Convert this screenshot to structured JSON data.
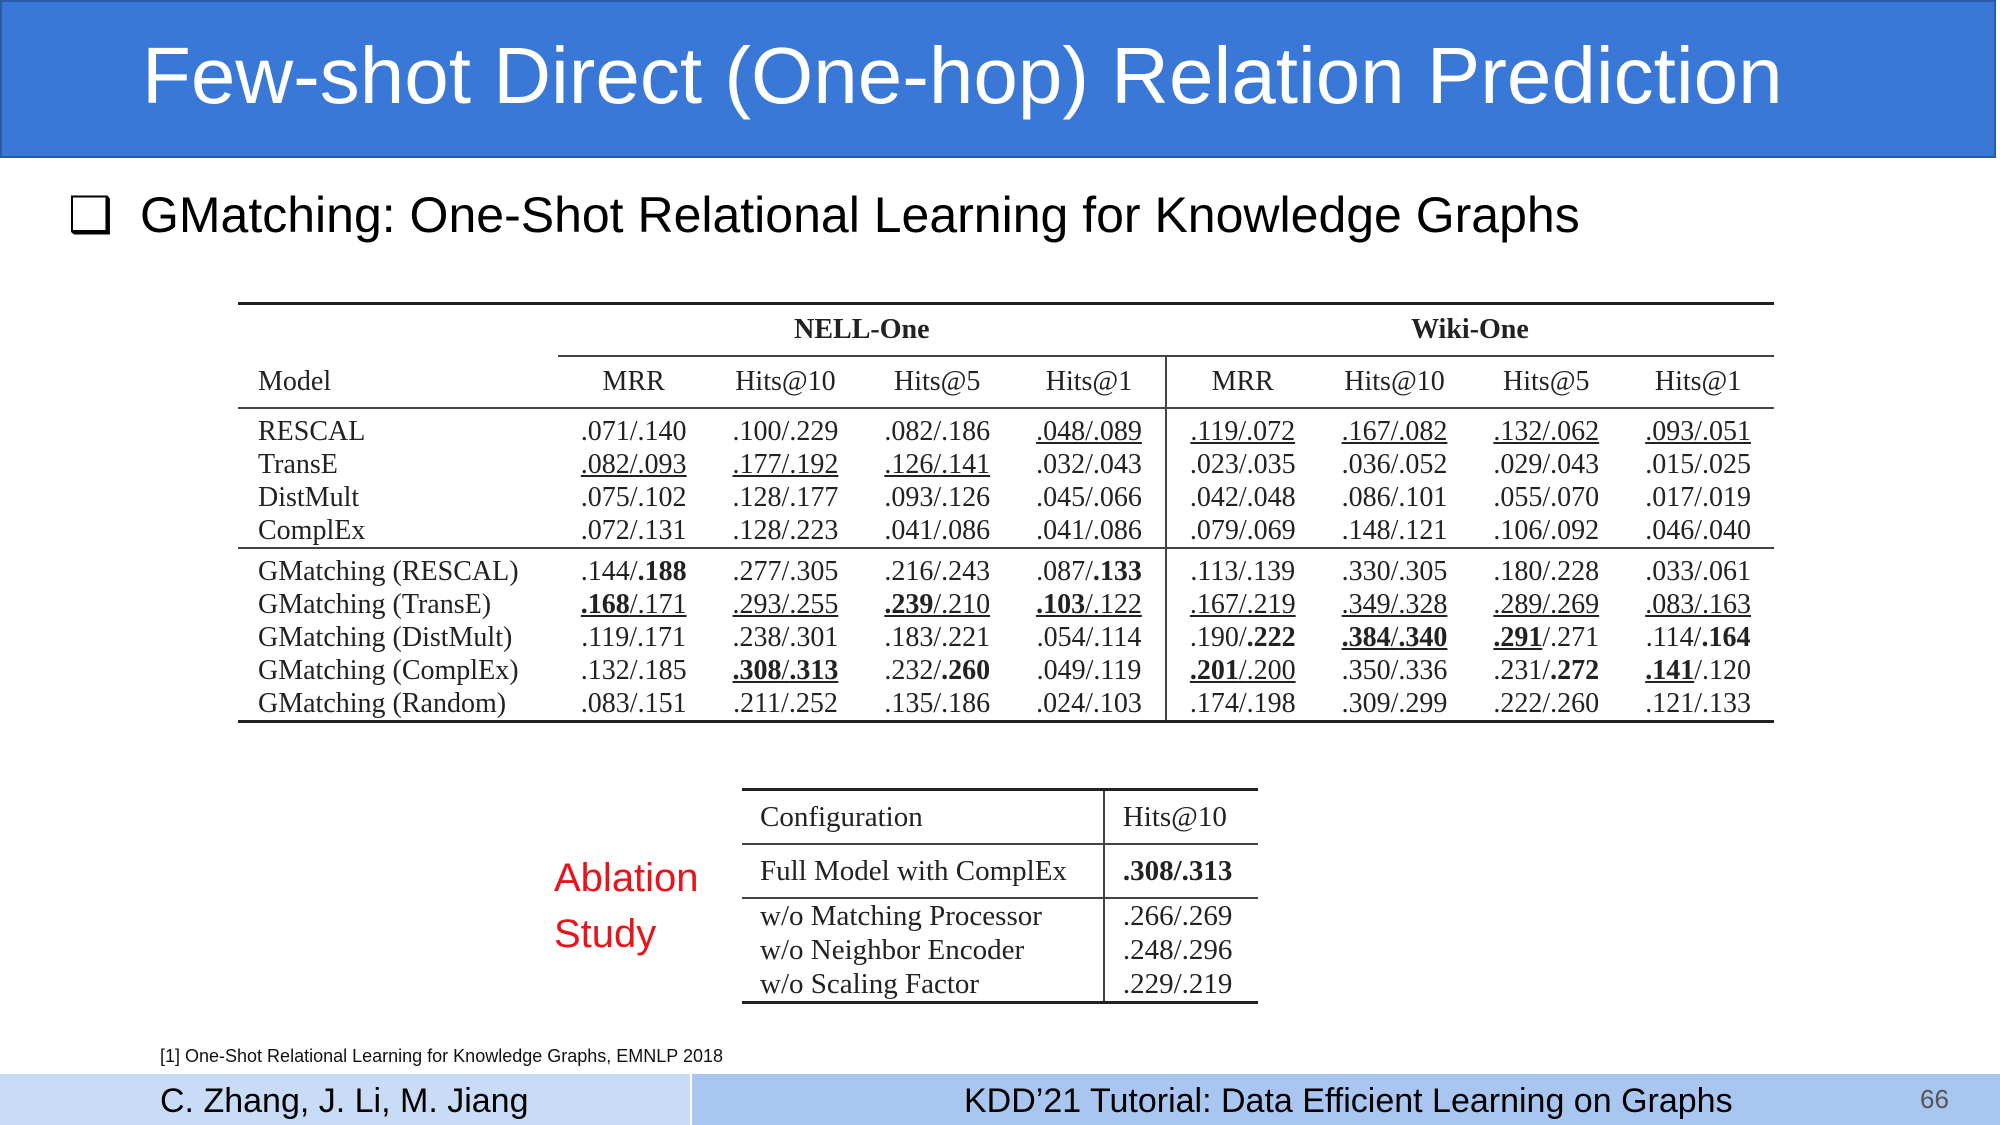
{
  "slide": {
    "title": "Few-shot Direct (One-hop) Relation Prediction",
    "bullet_symbol": "❑",
    "subtitle": "GMatching: One-Shot Relational Learning for Knowledge Graphs"
  },
  "results_table": {
    "group_headers": [
      "NELL-One",
      "Wiki-One"
    ],
    "column_headers": [
      "Model",
      "MRR",
      "Hits@10",
      "Hits@5",
      "Hits@1",
      "MRR",
      "Hits@10",
      "Hits@5",
      "Hits@1"
    ],
    "baseline_rows": [
      {
        "model": "RESCAL",
        "values": [
          ".071/.140",
          ".100/.229",
          ".082/.186",
          ".048/.089",
          ".119/.072",
          ".167/.082",
          ".132/.062",
          ".093/.051"
        ]
      },
      {
        "model": "TransE",
        "values": [
          ".082/.093",
          ".177/.192",
          ".126/.141",
          ".032/.043",
          ".023/.035",
          ".036/.052",
          ".029/.043",
          ".015/.025"
        ]
      },
      {
        "model": "DistMult",
        "values": [
          ".075/.102",
          ".128/.177",
          ".093/.126",
          ".045/.066",
          ".042/.048",
          ".086/.101",
          ".055/.070",
          ".017/.019"
        ]
      },
      {
        "model": "ComplEx",
        "values": [
          ".072/.131",
          ".128/.223",
          ".041/.086",
          ".041/.086",
          ".079/.069",
          ".148/.121",
          ".106/.092",
          ".046/.040"
        ]
      }
    ],
    "gmatching_rows": [
      {
        "model": "GMatching (RESCAL)",
        "values": [
          {
            "a": ".144",
            "b": ".188"
          },
          {
            "a": ".277",
            "b": ".305"
          },
          {
            "a": ".216",
            "b": ".243"
          },
          {
            "a": ".087",
            "b": ".133"
          },
          {
            "a": ".113",
            "b": ".139"
          },
          {
            "a": ".330",
            "b": ".305"
          },
          {
            "a": ".180",
            "b": ".228"
          },
          {
            "a": ".033",
            "b": ".061"
          }
        ]
      },
      {
        "model": "GMatching (TransE)",
        "values": [
          {
            "a": ".168",
            "b": ".171"
          },
          {
            "a": ".293",
            "b": ".255"
          },
          {
            "a": ".239",
            "b": ".210"
          },
          {
            "a": ".103",
            "b": ".122"
          },
          {
            "a": ".167",
            "b": ".219"
          },
          {
            "a": ".349",
            "b": ".328"
          },
          {
            "a": ".289",
            "b": ".269"
          },
          {
            "a": ".083",
            "b": ".163"
          }
        ]
      },
      {
        "model": "GMatching (DistMult)",
        "values": [
          {
            "a": ".119",
            "b": ".171"
          },
          {
            "a": ".238",
            "b": ".301"
          },
          {
            "a": ".183",
            "b": ".221"
          },
          {
            "a": ".054",
            "b": ".114"
          },
          {
            "a": ".190",
            "b": ".222"
          },
          {
            "a": ".384",
            "b": ".340"
          },
          {
            "a": ".291",
            "b": ".271"
          },
          {
            "a": ".114",
            "b": ".164"
          }
        ]
      },
      {
        "model": "GMatching (ComplEx)",
        "values": [
          {
            "a": ".132",
            "b": ".185"
          },
          {
            "a": ".308",
            "b": ".313"
          },
          {
            "a": ".232",
            "b": ".260"
          },
          {
            "a": ".049",
            "b": ".119"
          },
          {
            "a": ".201",
            "b": ".200"
          },
          {
            "a": ".350",
            "b": ".336"
          },
          {
            "a": ".231",
            "b": ".272"
          },
          {
            "a": ".141",
            "b": ".120"
          }
        ]
      },
      {
        "model": "GMatching (Random)",
        "values": [
          {
            "a": ".083",
            "b": ".151"
          },
          {
            "a": ".211",
            "b": ".252"
          },
          {
            "a": ".135",
            "b": ".186"
          },
          {
            "a": ".024",
            "b": ".103"
          },
          {
            "a": ".174",
            "b": ".198"
          },
          {
            "a": ".309",
            "b": ".299"
          },
          {
            "a": ".222",
            "b": ".260"
          },
          {
            "a": ".121",
            "b": ".133"
          }
        ]
      }
    ]
  },
  "ablation": {
    "label_line1": "Ablation",
    "label_line2": "Study",
    "headers": [
      "Configuration",
      "Hits@10"
    ],
    "full_model": {
      "config": "Full Model with ComplEx",
      "value": ".308/.313"
    },
    "rows": [
      {
        "config": "w/o Matching Processor",
        "value": ".266/.269"
      },
      {
        "config": "w/o Neighbor Encoder",
        "value": ".248/.296"
      },
      {
        "config": "w/o Scaling Factor",
        "value": ".229/.219"
      }
    ]
  },
  "footnote": "[1] One-Shot Relational Learning for Knowledge Graphs, EMNLP 2018",
  "footer": {
    "authors": "C. Zhang, J. Li, M. Jiang",
    "event": "KDD’21 Tutorial: Data Efficient Learning on Graphs",
    "page_number": "66"
  }
}
